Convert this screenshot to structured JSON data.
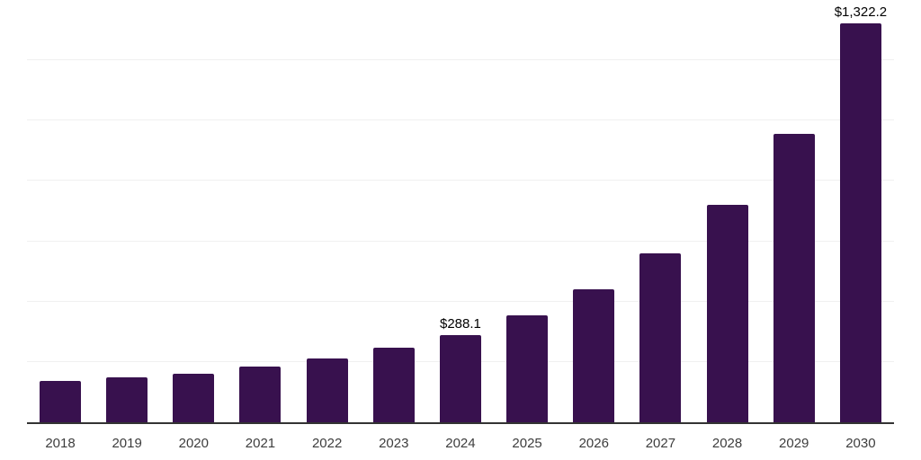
{
  "chart_data": {
    "type": "bar",
    "title": "",
    "xlabel": "",
    "ylabel": "",
    "categories": [
      "2018",
      "2019",
      "2020",
      "2021",
      "2022",
      "2023",
      "2024",
      "2025",
      "2026",
      "2027",
      "2028",
      "2029",
      "2030"
    ],
    "values": [
      138,
      149,
      162,
      184,
      211,
      247,
      288.1,
      354,
      440,
      559,
      722,
      957,
      1322.2
    ],
    "data_labels": [
      "",
      "",
      "",
      "",
      "",
      "",
      "$288.1",
      "",
      "",
      "",
      "",
      "",
      "$1,322.2"
    ],
    "ylim": [
      0,
      1400
    ],
    "gridline_step": 200,
    "grid": "horizontal",
    "y_tick_labels_visible": false,
    "legend": "none",
    "colors": {
      "bar": "#38114e",
      "axis_line": "#333333",
      "gridline": "#f0f0f0",
      "value_label": "#000000",
      "tick_label": "#3d3d3d",
      "background": "#ffffff"
    }
  }
}
